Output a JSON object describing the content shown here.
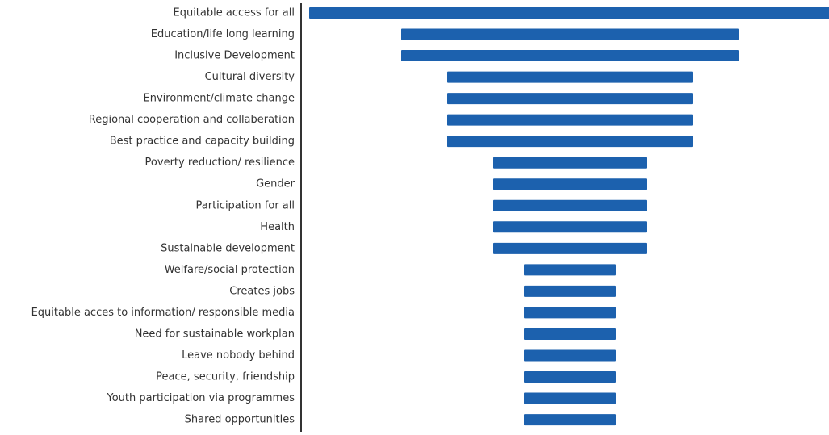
{
  "chart_data": {
    "type": "funnel",
    "color": "#1c61ae",
    "categories": [
      "Equitable access for all",
      "Education/life long learning",
      "Inclusive Development",
      "Cultural diversity",
      "Environment/climate change",
      "Regional cooperation and collaberation",
      "Best practice and capacity building",
      "Poverty reduction/ resilience",
      "Gender",
      "Participation for all",
      "Health",
      "Sustainable development",
      "Welfare/social protection",
      "Creates jobs",
      "Equitable acces to information/ responsible media",
      "Need for sustainable workplan",
      "Leave nobody behind",
      "Peace, security, friendship",
      "Youth participation via programmes",
      "Shared opportunities"
    ],
    "values": [
      17,
      11,
      11,
      8,
      8,
      8,
      8,
      5,
      5,
      5,
      5,
      5,
      3,
      3,
      3,
      3,
      3,
      3,
      3,
      3
    ]
  }
}
